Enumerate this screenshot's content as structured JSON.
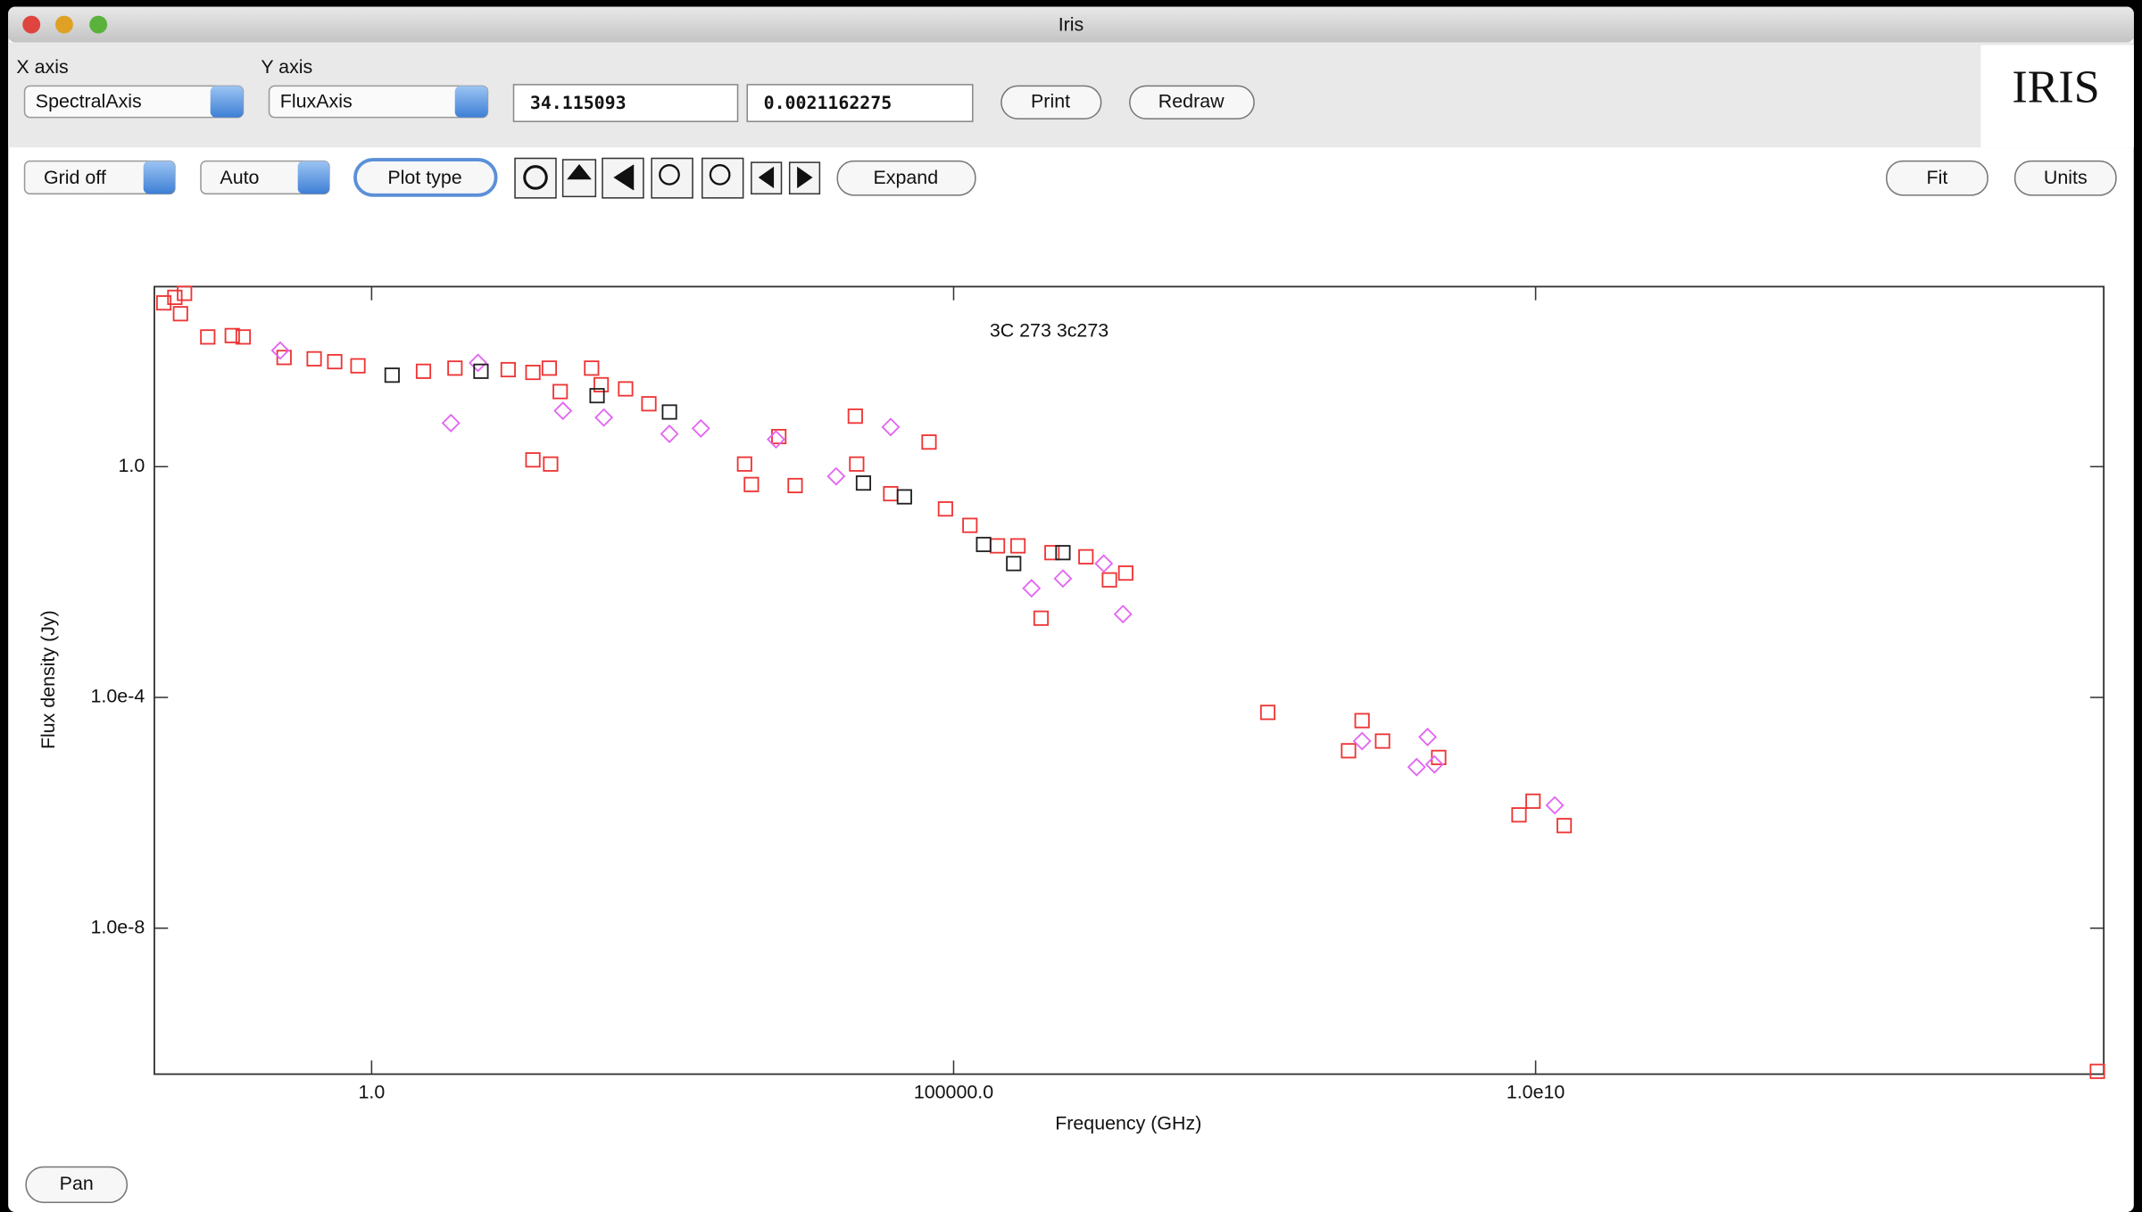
{
  "window": {
    "title": "Iris"
  },
  "toolbar": {
    "x_axis_label": "X axis",
    "y_axis_label": "Y axis",
    "x_axis_value": "SpectralAxis",
    "y_axis_value": "FluxAxis",
    "x_coord": "34.115093",
    "y_coord": "0.0021162275",
    "print": "Print",
    "redraw": "Redraw"
  },
  "controls": {
    "grid": "Grid off",
    "scale": "Auto",
    "plot_type": "Plot type",
    "expand": "Expand",
    "fit": "Fit",
    "units": "Units",
    "pan": "Pan"
  },
  "logo": "IRIS",
  "chart_data": {
    "type": "scatter",
    "title": "3C 273 3c273",
    "xlabel": "Frequency (GHz)",
    "ylabel": "Flux density (Jy)",
    "xscale": "log",
    "yscale": "log",
    "grid": false,
    "xlim": [
      0.0136,
      760000000000000.0
    ],
    "ylim": [
      2.95e-11,
      1320
    ],
    "xticks": [
      {
        "value": 1,
        "label": "1.0"
      },
      {
        "value": 100000,
        "label": "100000.0"
      },
      {
        "value": 10000000000.0,
        "label": "1.0e10"
      }
    ],
    "yticks": [
      {
        "value": 1,
        "label": "1.0"
      },
      {
        "value": 0.0001,
        "label": "1.0e-4"
      },
      {
        "value": 1e-08,
        "label": "1.0e-8"
      }
    ],
    "series": [
      {
        "color": "#ee3535",
        "marker": "square",
        "x": [
          0.0164,
          0.0204,
          0.0247,
          0.0228,
          0.0391,
          0.0635,
          0.0788,
          0.177,
          0.321,
          0.482,
          0.763,
          2.79,
          5.2,
          14.9,
          24.3,
          33.6,
          41.7,
          77.6,
          93.8,
          152,
          241,
          24.3,
          34.5,
          1600,
          1830,
          3150,
          4350,
          14300,
          14700,
          28800,
          61500,
          85100,
          138000,
          238000,
          564000,
          700000,
          1370000,
          2180000,
          3010000,
          50000000,
          247000000,
          323000000,
          484000000,
          1470000000,
          7200000000,
          9500000000,
          17600000000,
          670000000000000,
          357000
        ],
        "values": [
          690,
          860,
          1010,
          448,
          177,
          187,
          177,
          78,
          74,
          66,
          56,
          45,
          51,
          48,
          43,
          51,
          20,
          51,
          26.3,
          22.3,
          12.3,
          1.31,
          1.11,
          1.11,
          0.49,
          3.32,
          0.47,
          7.5,
          1.11,
          0.34,
          2.67,
          0.185,
          0.096,
          0.0424,
          0.00236,
          0.0323,
          0.0274,
          0.0109,
          0.0143,
          5.5e-05,
          1.19e-05,
          3.96e-05,
          1.75e-05,
          9.1e-06,
          9.2e-07,
          1.59e-06,
          6e-07,
          3.3e-11,
          0.0424
        ]
      },
      {
        "color": "#e266f2",
        "marker": "diamond",
        "x": [
          0.164,
          4.8,
          8.2,
          44,
          98.9,
          362,
          674,
          2980,
          9790,
          28800,
          467000,
          869000,
          1950000,
          2850000,
          323000000,
          950000000,
          1180000000,
          1350000000,
          14600000000
        ],
        "values": [
          103,
          5.7,
          63,
          9.3,
          7.1,
          3.7,
          4.6,
          2.97,
          0.68,
          4.86,
          0.0078,
          0.0115,
          0.0209,
          0.00278,
          1.75e-05,
          6.2e-06,
          2.06e-05,
          6.9e-06,
          1.35e-06
        ]
      },
      {
        "color": "#222222",
        "marker": "square",
        "x": [
          1.5,
          8.7,
          86.5,
          362,
          16800,
          37800,
          181000,
          328000,
          869000
        ],
        "values": [
          38.5,
          45,
          17,
          8.85,
          0.52,
          0.3,
          0.0448,
          0.0209,
          0.0323
        ]
      }
    ]
  }
}
